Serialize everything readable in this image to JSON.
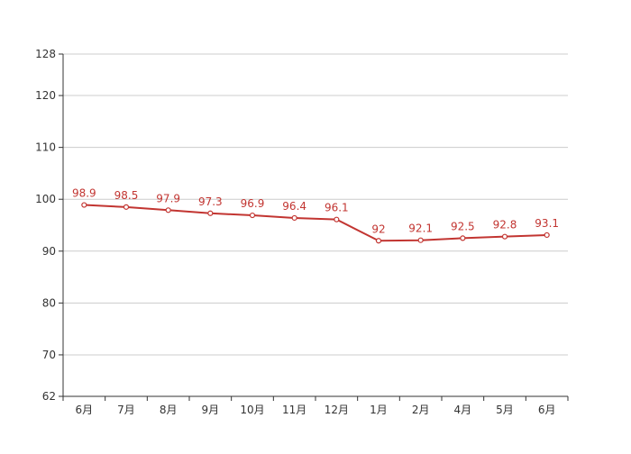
{
  "chart_data": {
    "type": "line",
    "categories": [
      "6月",
      "7月",
      "8月",
      "9月",
      "10月",
      "11月",
      "12月",
      "1月",
      "2月",
      "4月",
      "5月",
      "6月"
    ],
    "series": [
      {
        "values": [
          98.9,
          98.5,
          97.9,
          97.3,
          96.9,
          96.4,
          96.1,
          92,
          92.1,
          92.5,
          92.8,
          93.1
        ],
        "color": "#c23531"
      }
    ],
    "y_ticks": [
      62,
      70,
      80,
      90,
      100,
      110,
      120,
      128
    ],
    "ylim": [
      62,
      128
    ],
    "grid": true,
    "legend": "none",
    "data_labels": true
  }
}
